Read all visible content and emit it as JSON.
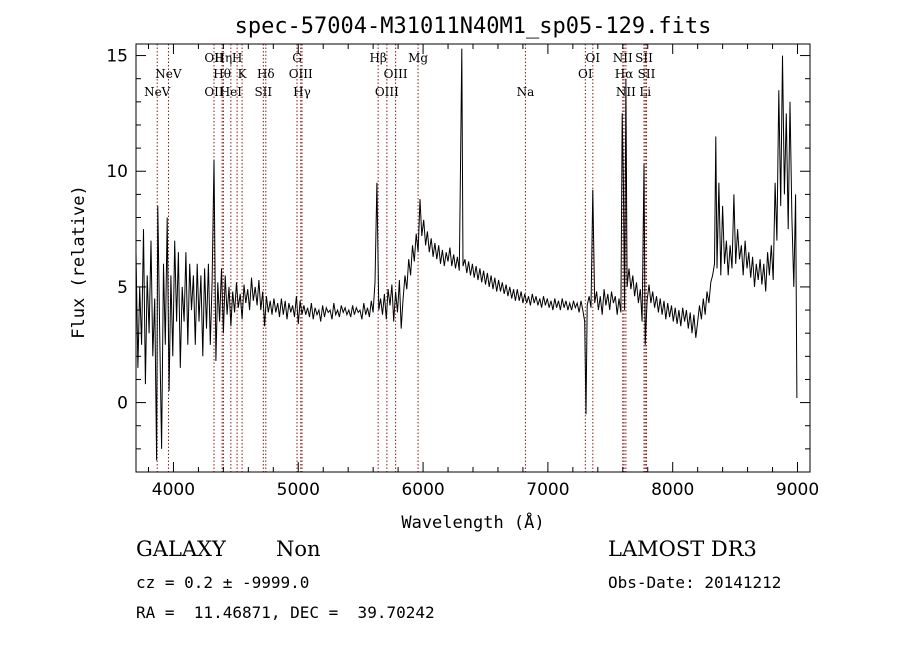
{
  "chart_data": {
    "type": "line",
    "title": "spec-57004-M31011N40M1_sp05-129.fits",
    "xlabel": "Wavelength (Å)",
    "ylabel": "Flux (relative)",
    "xlim": [
      3700,
      9100
    ],
    "ylim": [
      -3,
      15.5
    ],
    "xticks": [
      {
        "value": 4000,
        "label": "4000"
      },
      {
        "value": 5000,
        "label": "5000"
      },
      {
        "value": 6000,
        "label": "6000"
      },
      {
        "value": 7000,
        "label": "7000"
      },
      {
        "value": 8000,
        "label": "8000"
      },
      {
        "value": 9000,
        "label": "9000"
      }
    ],
    "yticks": [
      {
        "value": 0,
        "label": "0"
      },
      {
        "value": 5,
        "label": "5"
      },
      {
        "value": 10,
        "label": "10"
      },
      {
        "value": 15,
        "label": "15"
      }
    ],
    "line_color": "#8b1a1a",
    "lines": [
      {
        "label": "NeV",
        "wave": 3870,
        "row": 3
      },
      {
        "label": "NeV",
        "wave": 3960,
        "row": 2
      },
      {
        "label": "OII",
        "wave": 4325,
        "row": 1
      },
      {
        "label": "OII",
        "wave": 4325,
        "row": 3
      },
      {
        "label": "Hη",
        "wave": 4400,
        "row": 1
      },
      {
        "label": "Hθ",
        "wave": 4390,
        "row": 2
      },
      {
        "label": "HeI",
        "wave": 4460,
        "row": 3
      },
      {
        "label": "H",
        "wave": 4510,
        "row": 1
      },
      {
        "label": "K",
        "wave": 4550,
        "row": 2
      },
      {
        "label": "SII",
        "wave": 4720,
        "row": 3
      },
      {
        "label": "Hδ",
        "wave": 4740,
        "row": 2
      },
      {
        "label": "G",
        "wave": 4990,
        "row": 1
      },
      {
        "label": "OIII",
        "wave": 5020,
        "row": 2
      },
      {
        "label": "Hγ",
        "wave": 5030,
        "row": 3
      },
      {
        "label": "Hβ",
        "wave": 5640,
        "row": 1
      },
      {
        "label": "OIII",
        "wave": 5710,
        "row": 3
      },
      {
        "label": "OIII",
        "wave": 5780,
        "row": 2
      },
      {
        "label": "Mg",
        "wave": 5960,
        "row": 1
      },
      {
        "label": "Na",
        "wave": 6820,
        "row": 3
      },
      {
        "label": "OI",
        "wave": 7300,
        "row": 2
      },
      {
        "label": "OI",
        "wave": 7360,
        "row": 1
      },
      {
        "label": "NII",
        "wave": 7600,
        "row": 1
      },
      {
        "label": "Hα",
        "wave": 7610,
        "row": 2
      },
      {
        "label": "NII",
        "wave": 7625,
        "row": 3
      },
      {
        "label": "SII",
        "wave": 7770,
        "row": 1
      },
      {
        "label": "SII",
        "wave": 7790,
        "row": 2
      },
      {
        "label": "Li",
        "wave": 7780,
        "row": 3
      }
    ],
    "spectrum": [
      [
        3700,
        6.5
      ],
      [
        3715,
        1.5
      ],
      [
        3730,
        5.0
      ],
      [
        3745,
        2.5
      ],
      [
        3760,
        7.5
      ],
      [
        3775,
        0.8
      ],
      [
        3790,
        5.5
      ],
      [
        3805,
        3.0
      ],
      [
        3820,
        7.0
      ],
      [
        3835,
        2.0
      ],
      [
        3850,
        4.5
      ],
      [
        3865,
        -2.5
      ],
      [
        3875,
        8.5
      ],
      [
        3890,
        3.0
      ],
      [
        3905,
        -2.0
      ],
      [
        3920,
        6.0
      ],
      [
        3935,
        2.5
      ],
      [
        3950,
        8.0
      ],
      [
        3965,
        0.5
      ],
      [
        3980,
        5.5
      ],
      [
        3995,
        2.0
      ],
      [
        4010,
        7.0
      ],
      [
        4025,
        3.5
      ],
      [
        4040,
        6.5
      ],
      [
        4055,
        1.5
      ],
      [
        4070,
        5.0
      ],
      [
        4085,
        3.5
      ],
      [
        4100,
        6.5
      ],
      [
        4115,
        2.5
      ],
      [
        4130,
        6.0
      ],
      [
        4145,
        4.0
      ],
      [
        4160,
        5.5
      ],
      [
        4175,
        2.5
      ],
      [
        4190,
        6.0
      ],
      [
        4205,
        3.5
      ],
      [
        4220,
        5.5
      ],
      [
        4235,
        2.0
      ],
      [
        4250,
        5.8
      ],
      [
        4265,
        3.2
      ],
      [
        4280,
        6.0
      ],
      [
        4295,
        2.5
      ],
      [
        4310,
        5.2
      ],
      [
        4325,
        10.5
      ],
      [
        4340,
        1.8
      ],
      [
        4355,
        5.2
      ],
      [
        4370,
        3.5
      ],
      [
        4385,
        5.8
      ],
      [
        4400,
        3.0
      ],
      [
        4415,
        5.5
      ],
      [
        4430,
        3.8
      ],
      [
        4445,
        5.0
      ],
      [
        4460,
        3.3
      ],
      [
        4475,
        4.8
      ],
      [
        4490,
        3.9
      ],
      [
        4505,
        5.2
      ],
      [
        4520,
        4.1
      ],
      [
        4535,
        4.7
      ],
      [
        4550,
        3.6
      ],
      [
        4565,
        5.1
      ],
      [
        4580,
        4.3
      ],
      [
        4595,
        4.9
      ],
      [
        4610,
        4.0
      ],
      [
        4625,
        5.4
      ],
      [
        4640,
        4.4
      ],
      [
        4655,
        5.0
      ],
      [
        4670,
        4.2
      ],
      [
        4685,
        5.3
      ],
      [
        4700,
        4.0
      ],
      [
        4715,
        4.8
      ],
      [
        4730,
        3.3
      ],
      [
        4745,
        4.6
      ],
      [
        4760,
        3.9
      ],
      [
        4775,
        4.4
      ],
      [
        4790,
        3.8
      ],
      [
        4805,
        4.5
      ],
      [
        4820,
        3.9
      ],
      [
        4835,
        4.3
      ],
      [
        4850,
        3.7
      ],
      [
        4865,
        4.5
      ],
      [
        4880,
        3.8
      ],
      [
        4895,
        4.4
      ],
      [
        4910,
        3.6
      ],
      [
        4925,
        4.3
      ],
      [
        4940,
        3.9
      ],
      [
        4955,
        4.2
      ],
      [
        4970,
        3.7
      ],
      [
        4985,
        4.6
      ],
      [
        5000,
        3.4
      ],
      [
        5015,
        4.4
      ],
      [
        5030,
        3.8
      ],
      [
        5045,
        4.2
      ],
      [
        5060,
        3.8
      ],
      [
        5075,
        4.1
      ],
      [
        5090,
        3.7
      ],
      [
        5105,
        4.3
      ],
      [
        5120,
        3.6
      ],
      [
        5135,
        4.1
      ],
      [
        5150,
        3.8
      ],
      [
        5165,
        4.0
      ],
      [
        5180,
        3.5
      ],
      [
        5195,
        4.2
      ],
      [
        5210,
        3.7
      ],
      [
        5225,
        4.1
      ],
      [
        5240,
        3.9
      ],
      [
        5255,
        4.0
      ],
      [
        5270,
        3.6
      ],
      [
        5285,
        4.3
      ],
      [
        5300,
        3.8
      ],
      [
        5315,
        4.0
      ],
      [
        5330,
        3.7
      ],
      [
        5345,
        4.2
      ],
      [
        5360,
        3.9
      ],
      [
        5375,
        4.1
      ],
      [
        5390,
        3.8
      ],
      [
        5405,
        4.0
      ],
      [
        5420,
        3.7
      ],
      [
        5435,
        4.2
      ],
      [
        5450,
        3.8
      ],
      [
        5465,
        4.1
      ],
      [
        5480,
        3.9
      ],
      [
        5495,
        4.0
      ],
      [
        5510,
        3.6
      ],
      [
        5525,
        4.3
      ],
      [
        5540,
        3.8
      ],
      [
        5555,
        4.1
      ],
      [
        5570,
        3.7
      ],
      [
        5585,
        4.4
      ],
      [
        5600,
        3.9
      ],
      [
        5615,
        5.2
      ],
      [
        5630,
        9.5
      ],
      [
        5645,
        4.0
      ],
      [
        5660,
        4.5
      ],
      [
        5675,
        3.8
      ],
      [
        5690,
        4.7
      ],
      [
        5705,
        3.6
      ],
      [
        5720,
        4.9
      ],
      [
        5735,
        4.2
      ],
      [
        5750,
        5.1
      ],
      [
        5765,
        3.5
      ],
      [
        5780,
        4.8
      ],
      [
        5795,
        3.9
      ],
      [
        5810,
        5.3
      ],
      [
        5825,
        3.2
      ],
      [
        5840,
        4.5
      ],
      [
        5855,
        5.5
      ],
      [
        5870,
        4.9
      ],
      [
        5885,
        6.2
      ],
      [
        5900,
        5.5
      ],
      [
        5915,
        6.8
      ],
      [
        5930,
        6.1
      ],
      [
        5945,
        7.3
      ],
      [
        5960,
        6.5
      ],
      [
        5975,
        8.8
      ],
      [
        5990,
        7.2
      ],
      [
        6005,
        7.9
      ],
      [
        6020,
        6.8
      ],
      [
        6035,
        7.4
      ],
      [
        6050,
        6.5
      ],
      [
        6065,
        7.1
      ],
      [
        6080,
        6.3
      ],
      [
        6095,
        6.9
      ],
      [
        6110,
        6.2
      ],
      [
        6125,
        6.8
      ],
      [
        6140,
        6.0
      ],
      [
        6155,
        6.6
      ],
      [
        6170,
        5.9
      ],
      [
        6185,
        6.5
      ],
      [
        6200,
        6.1
      ],
      [
        6215,
        6.7
      ],
      [
        6230,
        5.9
      ],
      [
        6245,
        6.4
      ],
      [
        6260,
        5.8
      ],
      [
        6275,
        6.3
      ],
      [
        6290,
        5.7
      ],
      [
        6300,
        10.2
      ],
      [
        6310,
        15.3
      ],
      [
        6320,
        5.9
      ],
      [
        6335,
        6.2
      ],
      [
        6350,
        5.6
      ],
      [
        6365,
        6.1
      ],
      [
        6380,
        5.5
      ],
      [
        6395,
        6.0
      ],
      [
        6410,
        5.4
      ],
      [
        6425,
        5.9
      ],
      [
        6440,
        5.3
      ],
      [
        6455,
        5.8
      ],
      [
        6470,
        5.2
      ],
      [
        6485,
        5.7
      ],
      [
        6500,
        5.1
      ],
      [
        6515,
        5.6
      ],
      [
        6530,
        5.0
      ],
      [
        6545,
        5.5
      ],
      [
        6560,
        4.9
      ],
      [
        6575,
        5.4
      ],
      [
        6590,
        4.8
      ],
      [
        6605,
        5.3
      ],
      [
        6620,
        4.8
      ],
      [
        6635,
        5.2
      ],
      [
        6650,
        4.7
      ],
      [
        6665,
        5.1
      ],
      [
        6680,
        4.6
      ],
      [
        6695,
        5.0
      ],
      [
        6710,
        4.5
      ],
      [
        6725,
        4.9
      ],
      [
        6740,
        4.4
      ],
      [
        6755,
        4.9
      ],
      [
        6770,
        4.4
      ],
      [
        6785,
        4.8
      ],
      [
        6800,
        4.3
      ],
      [
        6815,
        4.7
      ],
      [
        6830,
        4.3
      ],
      [
        6845,
        4.6
      ],
      [
        6860,
        4.2
      ],
      [
        6875,
        4.7
      ],
      [
        6890,
        4.3
      ],
      [
        6905,
        4.6
      ],
      [
        6920,
        4.2
      ],
      [
        6935,
        4.5
      ],
      [
        6950,
        4.1
      ],
      [
        6965,
        4.6
      ],
      [
        6980,
        4.2
      ],
      [
        6995,
        4.5
      ],
      [
        7010,
        4.1
      ],
      [
        7025,
        4.4
      ],
      [
        7040,
        4.0
      ],
      [
        7055,
        4.5
      ],
      [
        7070,
        4.1
      ],
      [
        7085,
        4.4
      ],
      [
        7100,
        4.0
      ],
      [
        7115,
        4.5
      ],
      [
        7130,
        4.1
      ],
      [
        7145,
        4.4
      ],
      [
        7160,
        4.0
      ],
      [
        7175,
        4.3
      ],
      [
        7190,
        4.0
      ],
      [
        7205,
        4.4
      ],
      [
        7220,
        4.1
      ],
      [
        7235,
        4.3
      ],
      [
        7250,
        3.9
      ],
      [
        7265,
        4.4
      ],
      [
        7280,
        4.0
      ],
      [
        7295,
        3.5
      ],
      [
        7305,
        -0.5
      ],
      [
        7315,
        4.2
      ],
      [
        7330,
        4.6
      ],
      [
        7345,
        4.1
      ],
      [
        7360,
        9.2
      ],
      [
        7375,
        4.3
      ],
      [
        7390,
        4.8
      ],
      [
        7405,
        4.0
      ],
      [
        7420,
        4.6
      ],
      [
        7435,
        3.8
      ],
      [
        7450,
        4.9
      ],
      [
        7465,
        4.2
      ],
      [
        7480,
        4.7
      ],
      [
        7495,
        4.0
      ],
      [
        7510,
        4.8
      ],
      [
        7525,
        4.3
      ],
      [
        7540,
        4.6
      ],
      [
        7555,
        3.8
      ],
      [
        7570,
        4.5
      ],
      [
        7585,
        3.9
      ],
      [
        7595,
        12.5
      ],
      [
        7605,
        9.5
      ],
      [
        7615,
        4.0
      ],
      [
        7625,
        14.0
      ],
      [
        7635,
        5.0
      ],
      [
        7650,
        5.8
      ],
      [
        7665,
        4.9
      ],
      [
        7680,
        5.5
      ],
      [
        7695,
        4.6
      ],
      [
        7710,
        5.2
      ],
      [
        7725,
        4.3
      ],
      [
        7740,
        4.9
      ],
      [
        7755,
        3.5
      ],
      [
        7770,
        10.3
      ],
      [
        7780,
        2.5
      ],
      [
        7795,
        4.4
      ],
      [
        7810,
        5.1
      ],
      [
        7825,
        4.3
      ],
      [
        7840,
        4.8
      ],
      [
        7855,
        4.1
      ],
      [
        7870,
        4.6
      ],
      [
        7885,
        3.9
      ],
      [
        7900,
        4.5
      ],
      [
        7915,
        3.8
      ],
      [
        7930,
        4.4
      ],
      [
        7945,
        3.6
      ],
      [
        7960,
        4.3
      ],
      [
        7975,
        3.7
      ],
      [
        7990,
        4.2
      ],
      [
        8005,
        3.5
      ],
      [
        8020,
        4.1
      ],
      [
        8035,
        3.4
      ],
      [
        8050,
        4.0
      ],
      [
        8065,
        3.3
      ],
      [
        8080,
        4.1
      ],
      [
        8095,
        3.5
      ],
      [
        8110,
        4.0
      ],
      [
        8125,
        3.2
      ],
      [
        8140,
        3.9
      ],
      [
        8155,
        3.0
      ],
      [
        8170,
        3.8
      ],
      [
        8185,
        2.8
      ],
      [
        8200,
        3.5
      ],
      [
        8215,
        4.2
      ],
      [
        8230,
        3.6
      ],
      [
        8245,
        4.5
      ],
      [
        8260,
        3.8
      ],
      [
        8275,
        4.8
      ],
      [
        8290,
        4.3
      ],
      [
        8305,
        5.2
      ],
      [
        8320,
        5.5
      ],
      [
        8335,
        6.0
      ],
      [
        8345,
        11.5
      ],
      [
        8355,
        5.8
      ],
      [
        8370,
        9.5
      ],
      [
        8385,
        5.5
      ],
      [
        8400,
        8.5
      ],
      [
        8415,
        6.0
      ],
      [
        8430,
        7.0
      ],
      [
        8445,
        5.5
      ],
      [
        8460,
        6.8
      ],
      [
        8475,
        5.8
      ],
      [
        8490,
        9.0
      ],
      [
        8505,
        6.0
      ],
      [
        8520,
        7.5
      ],
      [
        8535,
        6.2
      ],
      [
        8550,
        6.8
      ],
      [
        8565,
        5.5
      ],
      [
        8580,
        7.0
      ],
      [
        8595,
        5.8
      ],
      [
        8610,
        6.5
      ],
      [
        8625,
        5.4
      ],
      [
        8640,
        6.3
      ],
      [
        8655,
        5.0
      ],
      [
        8670,
        6.0
      ],
      [
        8685,
        5.3
      ],
      [
        8700,
        6.2
      ],
      [
        8715,
        5.1
      ],
      [
        8730,
        6.0
      ],
      [
        8745,
        4.8
      ],
      [
        8760,
        6.5
      ],
      [
        8775,
        5.5
      ],
      [
        8790,
        6.8
      ],
      [
        8805,
        5.3
      ],
      [
        8820,
        9.5
      ],
      [
        8835,
        7.0
      ],
      [
        8850,
        13.5
      ],
      [
        8865,
        8.5
      ],
      [
        8880,
        15.0
      ],
      [
        8895,
        9.0
      ],
      [
        8910,
        12.5
      ],
      [
        8925,
        7.5
      ],
      [
        8940,
        13.0
      ],
      [
        8955,
        8.0
      ],
      [
        8970,
        5.0
      ],
      [
        8985,
        9.0
      ],
      [
        8995,
        0.2
      ]
    ]
  },
  "info": {
    "class": "GALAXY",
    "subclass": "Non",
    "release": "LAMOST DR3",
    "cz_line": "cz = 0.2 ± -9999.0",
    "obs_date": "Obs-Date: 20141212",
    "coords": "RA =  11.46871, DEC =  39.70242"
  }
}
